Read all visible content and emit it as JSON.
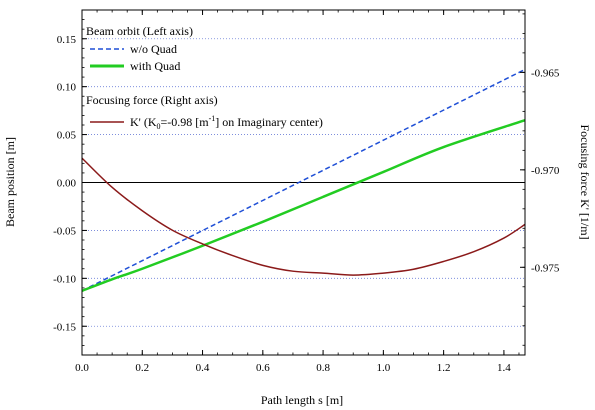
{
  "chart_data": {
    "type": "line",
    "xlabel": "Path length s [m]",
    "ylabel_left": "Beam position [m]",
    "ylabel_right": "Focusing force K' [1/m]",
    "xlim": [
      0,
      1.47
    ],
    "ylim_left": [
      -0.18,
      0.18
    ],
    "ylim_right": [
      -0.9795,
      -0.9618
    ],
    "x_ticks": [
      0.0,
      0.2,
      0.4,
      0.6,
      0.8,
      1.0,
      1.2,
      1.4
    ],
    "x_tick_labels": [
      "0.0",
      "0.2",
      "0.4",
      "0.6",
      "0.8",
      "1.0",
      "1.2",
      "1.4"
    ],
    "y_left_ticks": [
      -0.15,
      -0.1,
      -0.05,
      0.0,
      0.05,
      0.1,
      0.15
    ],
    "y_left_tick_labels": [
      "-0.15",
      "-0.10",
      "-0.05",
      "0.00",
      "0.05",
      "0.10",
      "0.15"
    ],
    "y_right_ticks": [
      -0.975,
      -0.97,
      -0.965
    ],
    "y_right_tick_labels": [
      "-0.975",
      "-0.970",
      "-0.965"
    ],
    "grid": "dotted horizontal at left-axis ticks",
    "zero_line_left": 0,
    "legend": {
      "placement": "top-left",
      "group1_title": "Beam orbit (Left axis)",
      "group2_title": "Focusing force (Right axis)",
      "k_label_prefix": "K' (K",
      "k_label_sub": "0",
      "k_label_mid": "=-0.98 [m",
      "k_label_sup": "-1",
      "k_label_suffix": "] on Imaginary center)"
    },
    "series": [
      {
        "name": "w/o Quad",
        "axis": "left",
        "color": "#1f4fd6",
        "dash": "dashed",
        "x": [
          0.0,
          1.47
        ],
        "y": [
          -0.113,
          0.118
        ]
      },
      {
        "name": "with Quad",
        "axis": "left",
        "color": "#22cc22",
        "dash": "solid",
        "x": [
          0.0,
          0.1,
          0.2,
          0.4,
          0.6,
          0.8,
          1.0,
          1.2,
          1.47
        ],
        "y": [
          -0.113,
          -0.101,
          -0.09,
          -0.066,
          -0.041,
          -0.015,
          0.011,
          0.037,
          0.065
        ]
      },
      {
        "name": "K'",
        "axis": "right",
        "color": "#8b1a1a",
        "dash": "solid",
        "x": [
          0.0,
          0.1,
          0.2,
          0.3,
          0.4,
          0.5,
          0.6,
          0.7,
          0.8,
          0.9,
          1.0,
          1.1,
          1.2,
          1.3,
          1.4,
          1.47
        ],
        "y": [
          -0.9694,
          -0.9709,
          -0.9721,
          -0.9731,
          -0.9738,
          -0.9744,
          -0.9749,
          -0.9752,
          -0.9753,
          -0.9754,
          -0.9753,
          -0.9751,
          -0.9747,
          -0.9742,
          -0.9735,
          -0.9728
        ]
      }
    ]
  }
}
